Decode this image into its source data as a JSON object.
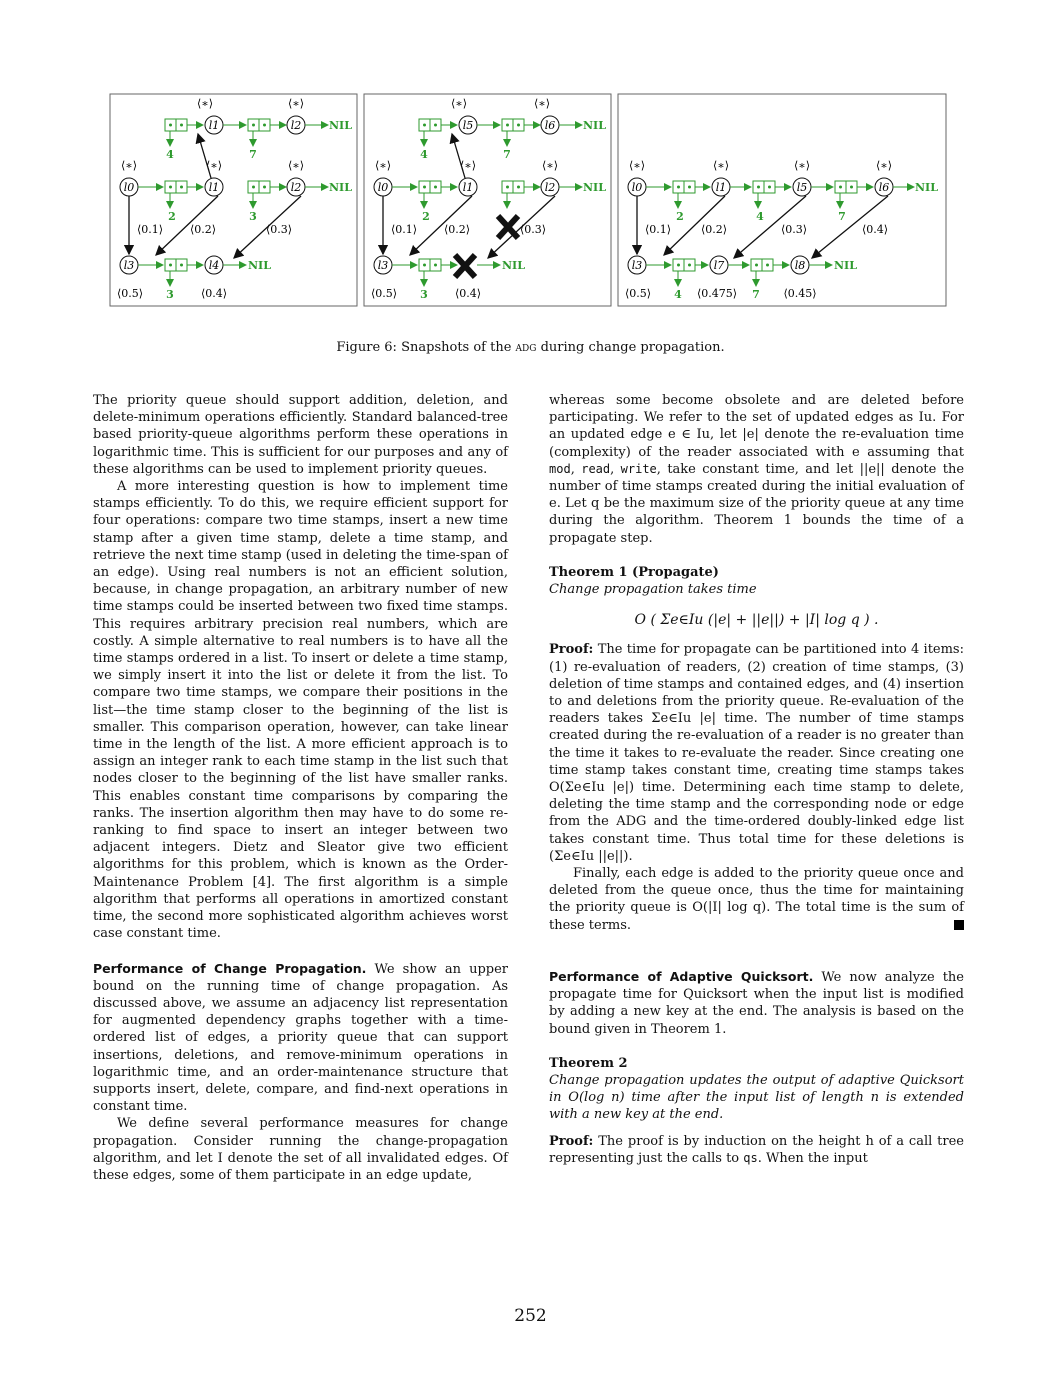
{
  "figure": {
    "caption_label": "Figure 6:",
    "caption_pre": "Snapshots of the ",
    "caption_sc": "adg",
    "caption_post": " during change propagation.",
    "star": "⟨∗⟩",
    "nil": "NIL",
    "green": "#2e9a2e",
    "panels": [
      {
        "nodes": {
          "a": "l1",
          "b": "l2",
          "c": "l0",
          "d": "l1",
          "e": "l2",
          "f": "l3",
          "g": "l4"
        },
        "nums": {
          "top1": "4",
          "top2": "7",
          "mid1": "2",
          "mid2": "3",
          "bot1": "3"
        },
        "ts": {
          "t1": "⟨0.1⟩",
          "t2": "⟨0.2⟩",
          "t3": "⟨0.3⟩",
          "t4": "⟨0.5⟩",
          "t5": "⟨0.4⟩"
        }
      },
      {
        "nodes": {
          "a": "l5",
          "b": "l6",
          "c": "l0",
          "d": "l1",
          "e": "l2",
          "f": "l3"
        },
        "nums": {
          "top1": "4",
          "top2": "7",
          "mid1": "2",
          "bot1": "3"
        },
        "ts": {
          "t1": "⟨0.1⟩",
          "t2": "⟨0.2⟩",
          "t3": "⟨0.3⟩",
          "t4": "⟨0.5⟩",
          "t5": "⟨0.4⟩"
        }
      },
      {
        "nodes": {
          "a": "l0",
          "b": "l1",
          "c": "l5",
          "d": "l6",
          "e": "l3",
          "f": "l7",
          "g": "l8"
        },
        "nums": {
          "n1": "2",
          "n2": "4",
          "n3": "7",
          "b1": "4",
          "b2": "7"
        },
        "ts": {
          "t1": "⟨0.1⟩",
          "t2": "⟨0.2⟩",
          "t3": "⟨0.3⟩",
          "t4": "⟨0.4⟩",
          "t5": "⟨0.5⟩",
          "t6": "⟨0.475⟩",
          "t7": "⟨0.45⟩"
        }
      }
    ]
  },
  "left": {
    "p1": "The priority queue should support addition, deletion, and delete-minimum operations efficiently. Standard balanced-tree based priority-queue algorithms perform these operations in logarithmic time. This is sufficient for our purposes and any of these algorithms can be used to implement priority queues.",
    "p2": "A more interesting question is how to implement time stamps efficiently. To do this, we require efficient support for four operations: compare two time stamps, insert a new time stamp after a given time stamp, delete a time stamp, and retrieve the next time stamp (used in deleting the time-span of an edge). Using real numbers is not an efficient solution, because, in change propagation, an arbitrary number of new time stamps could be inserted between two fixed time stamps. This requires arbitrary precision real numbers, which are costly. A simple alternative to real numbers is to have all the time stamps ordered in a list. To insert or delete a time stamp, we simply insert it into the list or delete it from the list. To compare two time stamps, we compare their positions in the list—the time stamp closer to the beginning of the list is smaller. This comparison operation, however, can take linear time in the length of the list. A more efficient approach is to assign an integer rank to each time stamp in the list such that nodes closer to the beginning of the list have smaller ranks. This enables constant time comparisons by comparing the ranks. The insertion algorithm then may have to do some re-ranking to find space to insert an integer between two adjacent integers. Dietz and Sleator give two efficient algorithms for this problem, which is known as the Order-Maintenance Problem [4]. The first algorithm is a simple algorithm that performs all operations in amortized constant time, the second more sophisticated algorithm achieves worst case constant time.",
    "h1": "Performance of Change Propagation.",
    "p3": "We show an upper bound on the running time of change propagation. As discussed above, we assume an adjacency list representation for augmented dependency graphs together with a time-ordered list of edges, a priority queue that can support insertions, deletions, and remove-minimum operations in logarithmic time, and an order-maintenance structure that supports insert, delete, compare, and find-next operations in constant time.",
    "p4": "We define several performance measures for change propagation. Consider running the change-propagation algorithm, and let I denote the set of all invalidated edges. Of these edges, some of them participate in an edge update,"
  },
  "right": {
    "p1": "whereas some become obsolete and are deleted before participating. We refer to the set of updated edges as Iu. For an updated edge e ∈ Iu, let |e| denote the re-evaluation time (complexity) of the reader associated with e assuming that",
    "code1": "mod",
    "code2": "read",
    "code3": "write",
    "p1b": "take constant time, and let ||e|| denote the number of time stamps created during the initial evaluation of e. Let q be the maximum size of the priority queue at any time during the algorithm. Theorem 1 bounds the time of a propagate step.",
    "thm1": "Theorem 1 (Propagate)",
    "thm1_body": "Change propagation takes time",
    "formula": "O ( Σe∈Iu (|e| + ||e||) + |I| log q ) .",
    "proof_label": "Proof:",
    "proof1": "The time for propagate can be partitioned into 4 items: (1) re-evaluation of readers, (2) creation of time stamps, (3) deletion of time stamps and contained edges, and (4) insertion to and deletions from the priority queue. Re-evaluation of the readers takes Σe∈Iu |e| time. The number of time stamps created during the re-evaluation of a reader is no greater than the time it takes to re-evaluate the reader. Since creating one time stamp takes constant time, creating time stamps takes O(Σe∈Iu |e|) time. Determining each time stamp to delete, deleting the time stamp and the corresponding node or edge from the ADG and the time-ordered doubly-linked edge list takes constant time. Thus total time for these deletions is (Σe∈Iu ||e||).",
    "proof2": "Finally, each edge is added to the priority queue once and deleted from the queue once, thus the time for maintaining the priority queue is O(|I| log q). The total time is the sum of these terms.",
    "h2": "Performance of Adaptive Quicksort.",
    "p2": "We now analyze the propagate time for Quicksort when the input list is modified by adding a new key at the end. The analysis is based on the bound given in Theorem 1.",
    "thm2": "Theorem 2",
    "thm2_body": "Change propagation updates the output of adaptive Quicksort in O(log n) time after the input list of length n is extended with a new key at the end.",
    "proof3_label": "Proof:",
    "proof3": "The proof is by induction on the height h of a call tree representing just the calls to",
    "code4": "qs",
    "proof3b": ". When the input"
  },
  "page_number": "252"
}
